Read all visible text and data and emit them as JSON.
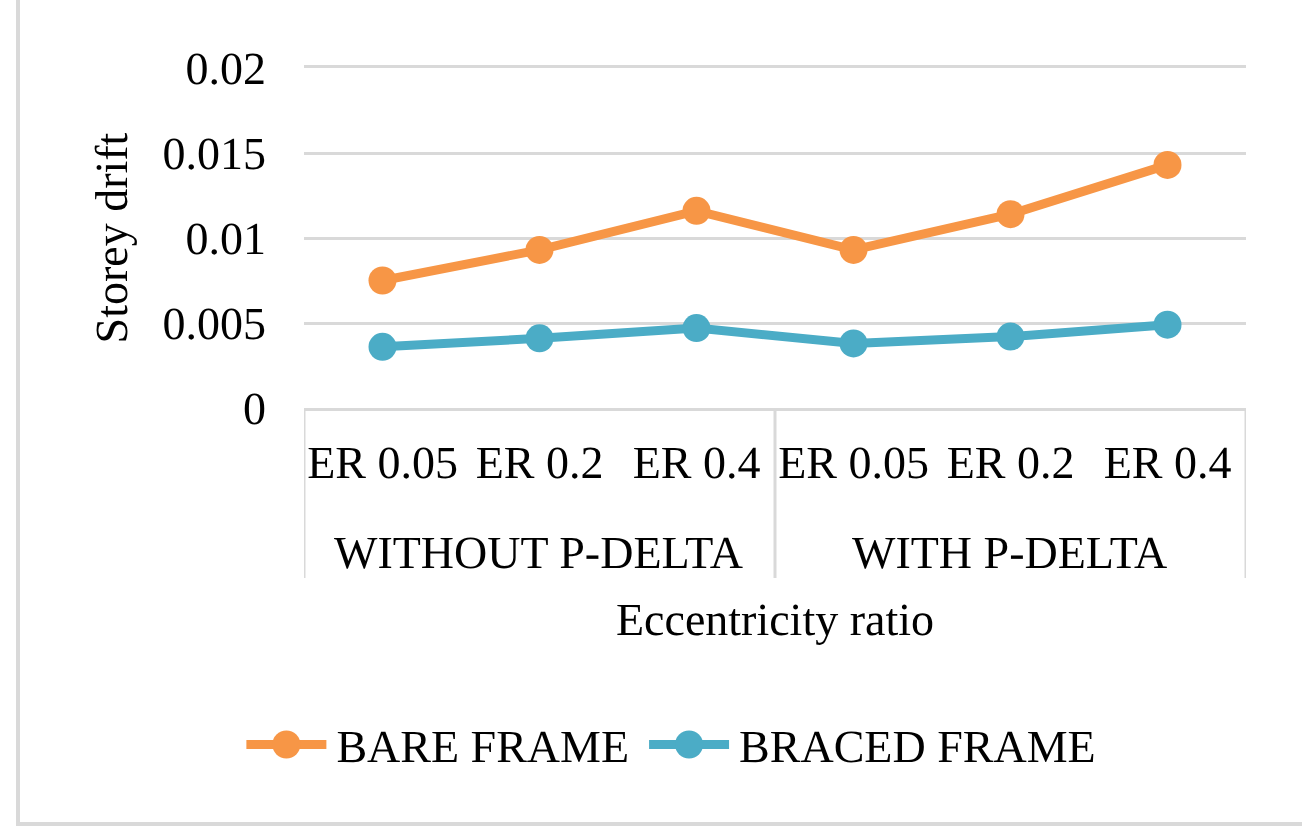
{
  "chart_data": {
    "type": "line",
    "ylabel": "Storey drift",
    "xlabel": "Eccentricity ratio",
    "categories": [
      "ER 0.05",
      "ER 0.2",
      "ER 0.4",
      "ER 0.05",
      "ER 0.2",
      "ER 0.4"
    ],
    "annotations": [
      "WITHOUT P-DELTA",
      "WITH P-DELTA"
    ],
    "series": [
      {
        "name": "BARE FRAME",
        "color": "#f79646",
        "values": [
          0.0075,
          0.0093,
          0.0116,
          0.0093,
          0.0114,
          0.0143
        ]
      },
      {
        "name": "BRACED FRAME",
        "color": "#4bacc6",
        "values": [
          0.0036,
          0.0041,
          0.0047,
          0.0038,
          0.0042,
          0.0049
        ]
      }
    ],
    "ylim": [
      0,
      0.02
    ],
    "yticks": [
      0,
      0.005,
      0.01,
      0.015,
      0.02
    ],
    "grid": "y",
    "legend": "bottom",
    "marker": "circle",
    "line_style": "solid"
  }
}
